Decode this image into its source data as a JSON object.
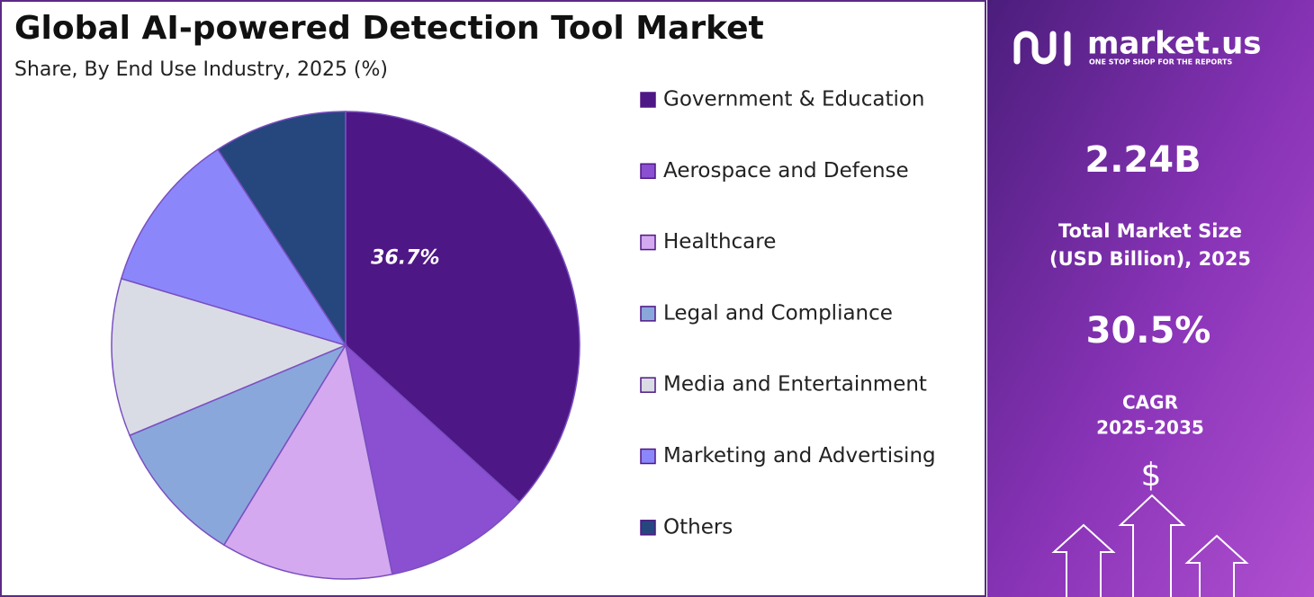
{
  "chart_data": {
    "type": "pie",
    "title": "Global AI-powered Detection Tool Market",
    "subtitle": "Share, By End Use Industry, 2025 (%)",
    "categories": [
      "Government & Education",
      "Aerospace and Defense",
      "Healthcare",
      "Legal and Compliance",
      "Media and Entertainment",
      "Marketing and Advertising",
      "Others"
    ],
    "values": [
      36.7,
      10.1,
      11.9,
      10.0,
      10.9,
      11.2,
      9.2
    ],
    "value_labels": [
      "36.7%",
      null,
      null,
      null,
      null,
      null,
      null
    ],
    "colors": [
      "#4e1786",
      "#8a50d1",
      "#d4a9ef",
      "#8aa7dc",
      "#d9dce5",
      "#8b87fb",
      "#26467e"
    ],
    "legend": "right"
  },
  "panel": {
    "brand": "market.us",
    "tagline": "ONE STOP SHOP FOR THE REPORTS",
    "market_size": "2.24B",
    "market_size_label": [
      "Total Market Size",
      "(USD Billion), 2025"
    ],
    "cagr": "30.5%",
    "cagr_label": [
      "CAGR",
      "2025-2035"
    ],
    "icon_text": "$"
  }
}
